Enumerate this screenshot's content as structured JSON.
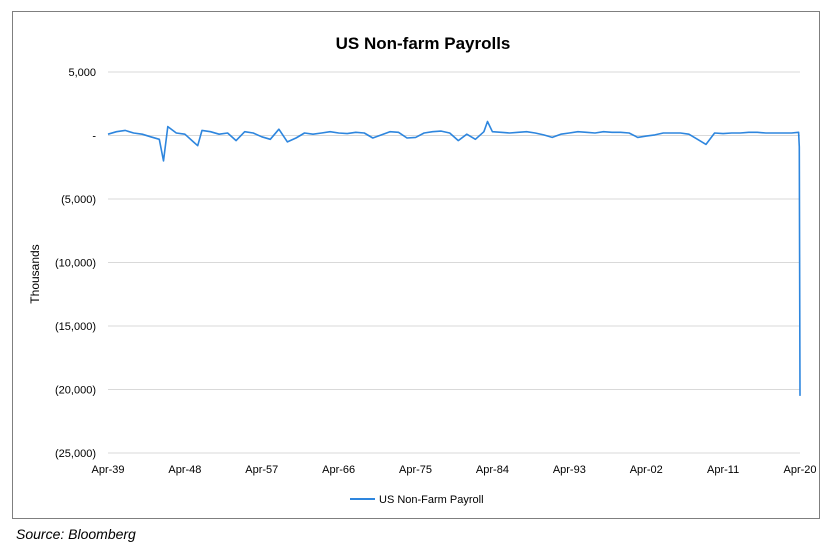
{
  "chart_data": {
    "type": "line",
    "title": "US Non-farm Payrolls",
    "xlabel": "",
    "ylabel": "Thousands",
    "ylim": [
      -25000,
      5000
    ],
    "y_ticks": [
      5000,
      0,
      -5000,
      -10000,
      -15000,
      -20000,
      -25000
    ],
    "y_tick_labels": [
      "5,000",
      "-",
      "(5,000)",
      "(10,000)",
      "(15,000)",
      "(20,000)",
      "(25,000)"
    ],
    "x_tick_labels": [
      "Apr-39",
      "Apr-48",
      "Apr-57",
      "Apr-66",
      "Apr-75",
      "Apr-84",
      "Apr-93",
      "Apr-02",
      "Apr-11",
      "Apr-20"
    ],
    "x_range": [
      "1939-04",
      "2020-04"
    ],
    "grid": "horizontal",
    "legend_position": "bottom",
    "series": [
      {
        "name": "US Non-Farm Payroll",
        "color": "#2e86de",
        "x": [
          "1939-04",
          "1940-04",
          "1941-04",
          "1942-04",
          "1943-04",
          "1944-04",
          "1945-04",
          "1945-10",
          "1946-04",
          "1947-04",
          "1948-04",
          "1949-04",
          "1949-10",
          "1950-04",
          "1951-04",
          "1952-04",
          "1953-04",
          "1954-04",
          "1955-04",
          "1956-04",
          "1957-04",
          "1958-04",
          "1959-04",
          "1960-04",
          "1961-04",
          "1962-04",
          "1963-04",
          "1964-04",
          "1965-04",
          "1966-04",
          "1967-04",
          "1968-04",
          "1969-04",
          "1970-04",
          "1971-04",
          "1972-04",
          "1973-04",
          "1974-04",
          "1975-04",
          "1976-04",
          "1977-04",
          "1978-04",
          "1979-04",
          "1980-04",
          "1981-04",
          "1982-04",
          "1983-04",
          "1983-09",
          "1984-04",
          "1985-04",
          "1986-04",
          "1987-04",
          "1988-04",
          "1989-04",
          "1990-04",
          "1991-04",
          "1992-04",
          "1993-04",
          "1994-04",
          "1995-04",
          "1996-04",
          "1997-04",
          "1998-04",
          "1999-04",
          "2000-04",
          "2001-04",
          "2002-04",
          "2003-04",
          "2004-04",
          "2005-04",
          "2006-04",
          "2007-04",
          "2008-04",
          "2009-04",
          "2010-04",
          "2011-04",
          "2012-04",
          "2013-04",
          "2014-04",
          "2015-04",
          "2016-04",
          "2017-04",
          "2018-04",
          "2019-04",
          "2020-02",
          "2020-03",
          "2020-04"
        ],
        "values": [
          100,
          300,
          400,
          200,
          100,
          -100,
          -300,
          -2000,
          700,
          200,
          100,
          -500,
          -800,
          400,
          300,
          100,
          200,
          -400,
          300,
          200,
          -100,
          -300,
          500,
          -500,
          -200,
          200,
          100,
          200,
          300,
          200,
          150,
          250,
          200,
          -200,
          50,
          300,
          250,
          -200,
          -150,
          200,
          300,
          350,
          200,
          -400,
          100,
          -300,
          300,
          1100,
          300,
          250,
          200,
          250,
          300,
          200,
          50,
          -150,
          100,
          200,
          300,
          250,
          200,
          300,
          250,
          250,
          200,
          -150,
          -50,
          50,
          200,
          200,
          200,
          100,
          -300,
          -700,
          200,
          150,
          200,
          200,
          250,
          250,
          200,
          200,
          200,
          200,
          250,
          -900,
          -20500
        ]
      }
    ]
  },
  "source_note": "Source: Bloomberg"
}
